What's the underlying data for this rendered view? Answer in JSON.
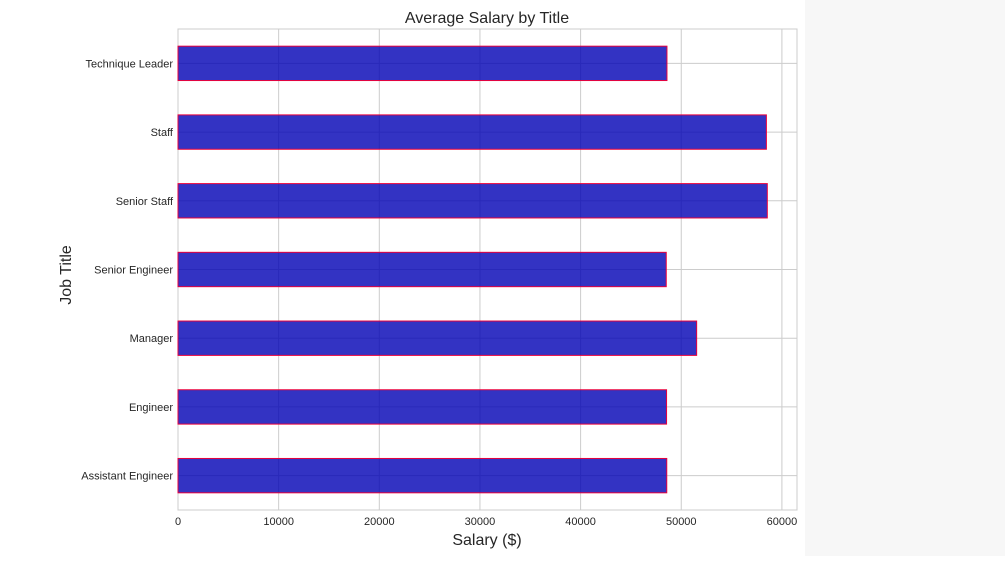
{
  "chart_data": {
    "type": "bar",
    "orientation": "horizontal",
    "title": "Average Salary by Title",
    "xlabel": "Salary ($)",
    "ylabel": "Job Title",
    "categories": [
      "Assistant Engineer",
      "Engineer",
      "Manager",
      "Senior Engineer",
      "Senior Staff",
      "Staff",
      "Technique Leader"
    ],
    "values": [
      48560,
      48540,
      51530,
      48510,
      58550,
      58460,
      48580
    ],
    "xlim": [
      0,
      61500
    ],
    "xticks": [
      0,
      10000,
      20000,
      30000,
      40000,
      50000,
      60000
    ],
    "xtick_labels": [
      "0",
      "10000",
      "20000",
      "30000",
      "40000",
      "50000",
      "60000"
    ],
    "grid": true,
    "bar_fill": "#0000b4",
    "bar_edge": "#e8003c"
  }
}
